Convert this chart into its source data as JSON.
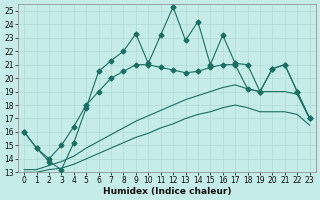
{
  "title": "",
  "xlabel": "Humidex (Indice chaleur)",
  "bg_color": "#c5ece8",
  "grid_color": "#b0d8d4",
  "line_color": "#1a6e62",
  "xlim": [
    -0.5,
    23.5
  ],
  "ylim": [
    13,
    25.5
  ],
  "yticks": [
    13,
    14,
    15,
    16,
    17,
    18,
    19,
    20,
    21,
    22,
    23,
    24,
    25
  ],
  "xticks": [
    0,
    1,
    2,
    3,
    4,
    5,
    6,
    7,
    8,
    9,
    10,
    11,
    12,
    13,
    14,
    15,
    16,
    17,
    18,
    19,
    20,
    21,
    22,
    23
  ],
  "line1_x": [
    0,
    1,
    2,
    3,
    4,
    5,
    6,
    7,
    8,
    9,
    10,
    11,
    12,
    13,
    14,
    15,
    16,
    17,
    18,
    19,
    20,
    21,
    22,
    23
  ],
  "line1_y": [
    16.0,
    14.8,
    13.8,
    13.2,
    15.2,
    17.8,
    20.5,
    21.3,
    22.0,
    23.3,
    21.1,
    23.2,
    25.3,
    22.8,
    24.2,
    21.0,
    23.2,
    21.1,
    21.0,
    19.0,
    20.7,
    21.0,
    19.0,
    17.0
  ],
  "line2_x": [
    0,
    1,
    2,
    3,
    4,
    5,
    6,
    7,
    8,
    9,
    10,
    11,
    12,
    13,
    14,
    15,
    16,
    17,
    18,
    19,
    20,
    21,
    22,
    23
  ],
  "line2_y": [
    16.0,
    14.8,
    14.0,
    15.0,
    16.4,
    18.0,
    19.0,
    20.0,
    20.5,
    21.0,
    21.0,
    20.8,
    20.6,
    20.4,
    20.5,
    20.8,
    21.0,
    21.0,
    19.2,
    19.0,
    20.7,
    21.0,
    19.0,
    17.0
  ],
  "line3_x": [
    0,
    1,
    2,
    3,
    4,
    5,
    6,
    7,
    8,
    9,
    10,
    11,
    12,
    13,
    14,
    15,
    16,
    17,
    18,
    19,
    20,
    21,
    22,
    23
  ],
  "line3_y": [
    13.2,
    13.2,
    13.5,
    13.8,
    14.2,
    14.8,
    15.3,
    15.8,
    16.3,
    16.8,
    17.2,
    17.6,
    18.0,
    18.4,
    18.7,
    19.0,
    19.3,
    19.5,
    19.2,
    19.0,
    19.0,
    19.0,
    18.8,
    17.0
  ],
  "line4_x": [
    0,
    1,
    2,
    3,
    4,
    5,
    6,
    7,
    8,
    9,
    10,
    11,
    12,
    13,
    14,
    15,
    16,
    17,
    18,
    19,
    20,
    21,
    22,
    23
  ],
  "line4_y": [
    13.0,
    13.0,
    13.2,
    13.3,
    13.6,
    14.0,
    14.4,
    14.8,
    15.2,
    15.6,
    15.9,
    16.3,
    16.6,
    17.0,
    17.3,
    17.5,
    17.8,
    18.0,
    17.8,
    17.5,
    17.5,
    17.5,
    17.3,
    16.5
  ]
}
